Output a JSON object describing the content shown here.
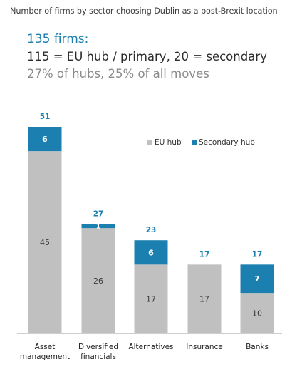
{
  "header": {
    "title": "Number of firms by sector choosing Dublin as a post-Brexit location",
    "line1": "135 firms:",
    "line2": "115 = EU hub / primary, 20 = secondary",
    "line3": "27% of hubs, 25% of all moves"
  },
  "colors": {
    "eu_hub": "#c0c0c0",
    "secondary_hub": "#1b80b0",
    "total_label": "#1b80b0",
    "segment_label_dark": "#3a3a3a",
    "segment_label_light": "#ffffff",
    "axis": "#cfcfcf"
  },
  "chart_data": {
    "type": "bar",
    "stacked": true,
    "categories": [
      "Asset\nmanagement",
      "Diversified\nfinancials",
      "Alternatives",
      "Insurance",
      "Banks"
    ],
    "series": [
      {
        "name": "EU hub",
        "values": [
          45,
          26,
          17,
          17,
          10
        ]
      },
      {
        "name": "Secondary hub",
        "values": [
          6,
          1,
          6,
          0,
          7
        ]
      }
    ],
    "totals": [
      51,
      27,
      23,
      17,
      17
    ],
    "ylim": [
      0,
      51
    ],
    "legend_position": "top-right",
    "grid": false
  }
}
